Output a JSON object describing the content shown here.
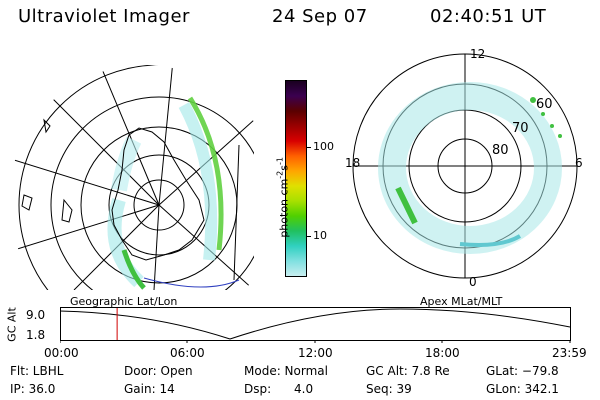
{
  "header": {
    "title": "Ultraviolet Imager",
    "date": "24 Sep 07",
    "time": "02:40:51 UT"
  },
  "left_panel": {
    "label": "Geographic Lat/Lon"
  },
  "right_panel": {
    "label": "Apex MLat/MLT",
    "mlt_labels": {
      "top": "12",
      "left": "18",
      "right": "6",
      "bottom": "0"
    },
    "lat_labels": [
      "60",
      "70",
      "80"
    ]
  },
  "colorbar": {
    "unit_label": "photon cm",
    "unit_exp1": "-2",
    "unit_s": "s",
    "unit_exp2": "-1",
    "ticks": [
      "100",
      "10"
    ],
    "colors": [
      "#1a0020",
      "#3b0050",
      "#5a0000",
      "#9a0000",
      "#d80000",
      "#ff6000",
      "#ffa500",
      "#e0e000",
      "#a8e000",
      "#50d000",
      "#20c060",
      "#30d0c0",
      "#80e0e0",
      "#c8eef0"
    ]
  },
  "altitude_plot": {
    "ylabel": "GC Alt",
    "y_ticks": [
      "9.0",
      "1.8"
    ],
    "x_ticks": [
      "00:00",
      "06:00",
      "12:00",
      "18:00",
      "23:59"
    ],
    "marker_color": "#d00000",
    "current_time_fraction": 0.112
  },
  "info": {
    "flt": "Flt: LBHL",
    "ip": "IP: 36.0",
    "door": "Door: Open",
    "gain": "Gain: 14",
    "mode": "Mode: Normal",
    "dsp": "Dsp:      4.0",
    "gcalt": "GC Alt: 7.8 Re",
    "seq": "Seq: 39",
    "glat": "GLat: −79.8",
    "glon": "GLon: 342.1"
  }
}
